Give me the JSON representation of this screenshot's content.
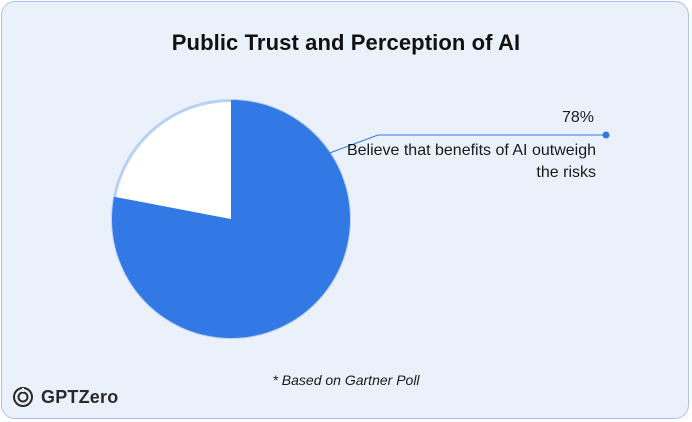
{
  "title": "Public Trust and Perception of AI",
  "footnote": "* Based on Gartner Poll",
  "brand": {
    "name": "GPTZero",
    "icon": "gptzero-logo-icon"
  },
  "colors": {
    "primary": "#3379e6",
    "secondary": "#ffffff",
    "slice_border": "#b9d0f5",
    "background": "#ebf1fb",
    "card_border": "#a9c2ef"
  },
  "chart_data": {
    "type": "pie",
    "title": "Public Trust and Perception of AI",
    "slices": [
      {
        "label": "Believe that benefits of AI outweigh the risks",
        "value": 78,
        "display": "78%"
      },
      {
        "label": "",
        "value": 22,
        "display": ""
      }
    ],
    "annotations": [
      {
        "value": "78%",
        "text": "Believe that benefits of AI outweigh the risks"
      }
    ],
    "legend": "none"
  }
}
